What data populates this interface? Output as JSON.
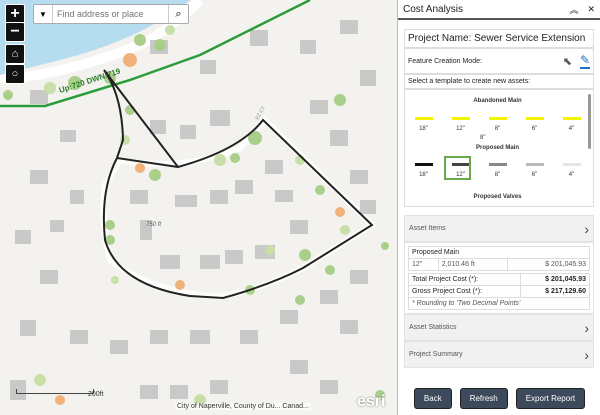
{
  "map": {
    "search_placeholder": "Find address or place",
    "scale_label": "200ft",
    "attribution": "City of Naperville, County of Du... Canad...",
    "esri_logo": "esri",
    "pipe_label": "Up:720 DWN:719",
    "area_label": "750 ft",
    "street_label": "EZ CT",
    "controls": [
      "zoom-in",
      "zoom-out",
      "home",
      "locate"
    ]
  },
  "panel": {
    "title": "Cost Analysis",
    "project_name": "Project Name: Sewer Service Extension",
    "feature_mode_label": "Feature Creation Mode:",
    "template_prompt": "Select a template to create new assets:",
    "templates": {
      "abandoned": {
        "title": "Abandoned Main",
        "color": "#f5f500",
        "sizes": [
          "18\"",
          "12\"",
          "8\"",
          "6\"",
          "4\""
        ]
      },
      "extra_label": "8\"",
      "proposed": {
        "title": "Proposed Main",
        "colors": [
          "#111111",
          "#444444",
          "#888888",
          "#bbbbbb",
          "#e5e5e5"
        ],
        "sizes": [
          "18\"",
          "12\"",
          "8\"",
          "6\"",
          "4\""
        ],
        "selected": "12\""
      },
      "valves_title": "Proposed Valves"
    },
    "asset_items": "Asset Items",
    "cost": {
      "group": "Proposed Main",
      "size": "12\"",
      "length": "2,010.46 ft",
      "cost": "$ 201,045.93",
      "total_label": "Total Project Cost (*):",
      "total": "$ 201,045.93",
      "gross_label": "Gross Project Cost (*):",
      "gross": "$ 217,129.60",
      "note": "* Rounding to 'Two Decimal Points'"
    },
    "asset_statistics": "Asset Statistics",
    "project_summary": "Project Summary",
    "buttons": {
      "back": "Back",
      "refresh": "Refresh",
      "export": "Export Report"
    }
  }
}
